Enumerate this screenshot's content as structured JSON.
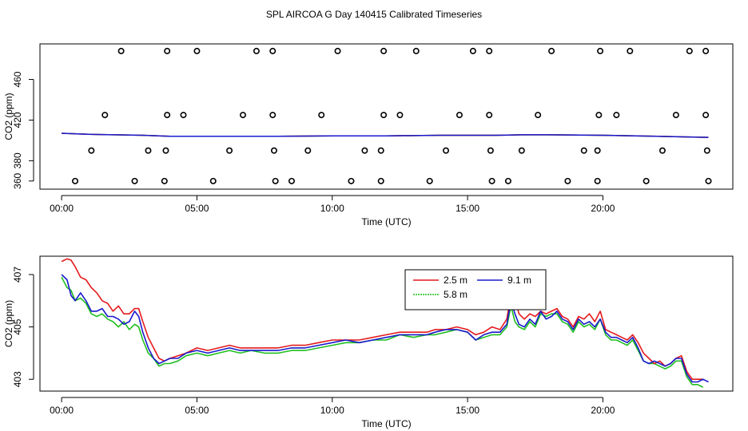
{
  "title": "SPL AIRCOA G  Day 140415  Calibrated Timeseries",
  "colors": {
    "red": "#e41a1c",
    "green": "#1fbf1f",
    "blue": "#1a1acc",
    "axis": "#000000"
  },
  "chart_data": [
    {
      "type": "line",
      "title": "",
      "xlabel": "Time (UTC)",
      "ylabel": "CO2 (ppm)",
      "xlim": [
        -0.8,
        24.8
      ],
      "ylim": [
        352,
        495
      ],
      "x_ticks": [
        0,
        5,
        10,
        15,
        20
      ],
      "x_tick_labels": [
        "00:00",
        "05:00",
        "10:00",
        "15:00",
        "20:00"
      ],
      "y_ticks": [
        380,
        420,
        460
      ],
      "y_tick_labels": [
        "380",
        "420",
        "460"
      ],
      "y_ticks_left": [
        360,
        380,
        420,
        460
      ],
      "y_ticks_left_labels": [
        "360",
        "",
        "",
        ""
      ],
      "series": [
        {
          "name": "2.5 m",
          "color": "red",
          "x": [
            0,
            1,
            2,
            3,
            4,
            5,
            6,
            8,
            10,
            12,
            14,
            16,
            17,
            18,
            20,
            22,
            23,
            23.9
          ],
          "y": [
            407,
            406,
            405.5,
            405,
            404,
            404,
            404,
            404,
            404.5,
            404.5,
            405,
            405,
            405.5,
            405.5,
            405,
            404,
            403.5,
            403
          ]
        },
        {
          "name": "5.8 m",
          "color": "green",
          "x": [
            0,
            1,
            2,
            3,
            4,
            5,
            6,
            8,
            10,
            12,
            14,
            16,
            17,
            18,
            20,
            22,
            23,
            23.9
          ],
          "y": [
            407,
            406,
            405.5,
            405,
            404,
            404,
            404,
            404,
            404.5,
            404.5,
            405,
            405,
            405.5,
            405.5,
            405,
            404,
            403.5,
            403
          ]
        },
        {
          "name": "9.1 m",
          "color": "blue",
          "x": [
            0,
            1,
            2,
            3,
            4,
            5,
            6,
            8,
            10,
            12,
            14,
            16,
            17,
            18,
            20,
            22,
            23,
            23.9
          ],
          "y": [
            407,
            406,
            405.5,
            405,
            404,
            404,
            404,
            404,
            404.5,
            404.5,
            405,
            405,
            405.5,
            405.5,
            405,
            404,
            403.5,
            403
          ]
        }
      ],
      "calibration_points": {
        "marker": "open-circle",
        "x": [
          0.5,
          1.1,
          1.6,
          2.2,
          2.7,
          3.2,
          3.8,
          3.85,
          3.9,
          3.9,
          4.5,
          5.0,
          5.6,
          6.2,
          6.7,
          7.2,
          7.8,
          7.8,
          7.85,
          7.9,
          8.5,
          9.1,
          9.6,
          10.2,
          10.7,
          11.2,
          11.8,
          11.8,
          11.9,
          11.9,
          12.5,
          13.1,
          13.6,
          14.2,
          14.7,
          15.2,
          15.8,
          15.8,
          15.85,
          15.9,
          16.5,
          17.0,
          17.6,
          18.1,
          18.7,
          19.3,
          19.8,
          19.8,
          19.85,
          19.9,
          20.5,
          21.0,
          21.6,
          22.2,
          22.7,
          23.2,
          23.8,
          23.8,
          23.85,
          23.9
        ],
        "y": [
          360,
          390,
          425,
          488,
          360,
          390,
          360,
          390,
          425,
          488,
          425,
          488,
          360,
          390,
          425,
          488,
          488,
          425,
          390,
          360,
          360,
          390,
          425,
          488,
          360,
          390,
          360,
          390,
          425,
          488,
          425,
          488,
          360,
          390,
          425,
          488,
          488,
          425,
          390,
          360,
          360,
          390,
          425,
          488,
          360,
          390,
          360,
          390,
          425,
          488,
          425,
          488,
          360,
          390,
          425,
          488,
          488,
          425,
          390,
          360
        ]
      }
    },
    {
      "type": "line",
      "title": "",
      "xlabel": "Time (UTC)",
      "ylabel": "CO2 (ppm)",
      "xlim": [
        -0.8,
        24.8
      ],
      "ylim": [
        402.55,
        407.7
      ],
      "x_ticks": [
        0,
        5,
        10,
        15,
        20
      ],
      "x_tick_labels": [
        "00:00",
        "05:00",
        "10:00",
        "15:00",
        "20:00"
      ],
      "y_ticks": [
        403,
        405,
        407
      ],
      "y_tick_labels": [
        "403",
        "405",
        "407"
      ],
      "legend": {
        "position": "top-center",
        "ncol": 2
      },
      "series": [
        {
          "name": "2.5 m",
          "color": "red",
          "x": [
            0.0,
            0.2,
            0.35,
            0.5,
            0.7,
            0.9,
            1.1,
            1.3,
            1.5,
            1.7,
            1.9,
            2.1,
            2.3,
            2.5,
            2.7,
            2.85,
            3.0,
            3.2,
            3.4,
            3.6,
            3.8,
            4.0,
            4.3,
            4.6,
            5.0,
            5.4,
            5.8,
            6.2,
            6.6,
            7.0,
            7.5,
            8.0,
            8.5,
            9.0,
            9.5,
            10.0,
            10.5,
            11.0,
            11.5,
            12.0,
            12.5,
            13.0,
            13.5,
            13.8,
            14.2,
            14.6,
            15.0,
            15.3,
            15.6,
            15.9,
            16.2,
            16.45,
            16.6,
            16.75,
            16.9,
            17.1,
            17.3,
            17.5,
            17.7,
            17.9,
            18.1,
            18.3,
            18.5,
            18.7,
            18.9,
            19.1,
            19.3,
            19.5,
            19.7,
            19.9,
            20.1,
            20.3,
            20.5,
            20.7,
            20.9,
            21.1,
            21.3,
            21.5,
            21.7,
            21.9,
            22.1,
            22.3,
            22.5,
            22.7,
            22.9,
            23.1,
            23.3,
            23.5,
            23.7
          ],
          "y": [
            407.5,
            407.6,
            407.55,
            407.3,
            406.9,
            406.8,
            406.5,
            406.3,
            406.0,
            405.9,
            405.6,
            405.8,
            405.5,
            405.5,
            405.7,
            405.7,
            405.2,
            404.6,
            404.2,
            403.8,
            403.7,
            403.8,
            403.9,
            404.0,
            404.2,
            404.1,
            404.2,
            404.3,
            404.2,
            404.2,
            404.2,
            404.2,
            404.3,
            404.3,
            404.4,
            404.5,
            404.5,
            404.5,
            404.6,
            404.7,
            404.8,
            404.8,
            404.8,
            404.9,
            404.9,
            405.0,
            404.9,
            404.7,
            404.8,
            405.0,
            404.9,
            405.3,
            406.2,
            406.1,
            405.5,
            405.3,
            405.5,
            405.4,
            405.6,
            405.5,
            405.6,
            405.7,
            405.4,
            405.3,
            405.0,
            405.4,
            405.3,
            405.5,
            405.2,
            405.6,
            404.9,
            404.8,
            404.7,
            404.6,
            404.5,
            404.7,
            404.4,
            404.0,
            403.8,
            403.6,
            403.7,
            403.5,
            403.6,
            403.8,
            403.9,
            403.3,
            403.0,
            403.0,
            403.0
          ]
        },
        {
          "name": "5.8 m",
          "color": "green",
          "x": [
            0.0,
            0.2,
            0.35,
            0.5,
            0.7,
            0.9,
            1.1,
            1.3,
            1.5,
            1.7,
            1.9,
            2.1,
            2.3,
            2.5,
            2.7,
            2.85,
            3.0,
            3.2,
            3.4,
            3.6,
            3.8,
            4.0,
            4.3,
            4.6,
            5.0,
            5.4,
            5.8,
            6.2,
            6.6,
            7.0,
            7.5,
            8.0,
            8.5,
            9.0,
            9.5,
            10.0,
            10.5,
            11.0,
            11.5,
            12.0,
            12.5,
            13.0,
            13.5,
            13.8,
            14.2,
            14.6,
            15.0,
            15.3,
            15.6,
            15.9,
            16.2,
            16.45,
            16.6,
            16.75,
            16.9,
            17.1,
            17.3,
            17.5,
            17.7,
            17.9,
            18.1,
            18.3,
            18.5,
            18.7,
            18.9,
            19.1,
            19.3,
            19.5,
            19.7,
            19.9,
            20.1,
            20.3,
            20.5,
            20.7,
            20.9,
            21.1,
            21.3,
            21.5,
            21.7,
            21.9,
            22.1,
            22.3,
            22.5,
            22.7,
            22.9,
            23.1,
            23.3,
            23.5,
            23.7
          ],
          "y": [
            406.9,
            406.5,
            406.4,
            406.0,
            406.1,
            405.9,
            405.5,
            405.4,
            405.5,
            405.3,
            405.2,
            405.0,
            405.2,
            404.9,
            405.1,
            405.0,
            404.5,
            404.0,
            403.8,
            403.5,
            403.6,
            403.6,
            403.7,
            403.9,
            404.0,
            403.9,
            404.0,
            404.1,
            404.0,
            404.1,
            404.0,
            404.0,
            404.1,
            404.1,
            404.2,
            404.3,
            404.4,
            404.4,
            404.5,
            404.5,
            404.7,
            404.6,
            404.7,
            404.7,
            404.8,
            404.9,
            404.8,
            404.5,
            404.6,
            404.7,
            404.7,
            405.0,
            405.8,
            405.2,
            405.0,
            404.9,
            405.2,
            405.0,
            405.5,
            405.4,
            405.5,
            405.5,
            405.2,
            405.1,
            404.8,
            405.2,
            405.0,
            405.1,
            404.9,
            405.3,
            404.7,
            404.5,
            404.5,
            404.4,
            404.3,
            404.5,
            404.1,
            403.7,
            403.6,
            403.6,
            403.5,
            403.4,
            403.5,
            403.7,
            403.7,
            403.1,
            402.8,
            402.8,
            402.7
          ]
        },
        {
          "name": "9.1 m",
          "color": "blue",
          "x": [
            0.0,
            0.2,
            0.35,
            0.5,
            0.7,
            0.9,
            1.1,
            1.3,
            1.5,
            1.7,
            1.9,
            2.1,
            2.3,
            2.5,
            2.7,
            2.85,
            3.0,
            3.2,
            3.4,
            3.6,
            3.8,
            4.0,
            4.3,
            4.6,
            5.0,
            5.4,
            5.8,
            6.2,
            6.6,
            7.0,
            7.5,
            8.0,
            8.5,
            9.0,
            9.5,
            10.0,
            10.5,
            11.0,
            11.5,
            12.0,
            12.5,
            13.0,
            13.5,
            13.8,
            14.2,
            14.6,
            15.0,
            15.3,
            15.6,
            15.9,
            16.2,
            16.45,
            16.6,
            16.75,
            16.9,
            17.1,
            17.3,
            17.5,
            17.7,
            17.9,
            18.1,
            18.3,
            18.5,
            18.7,
            18.9,
            19.1,
            19.3,
            19.5,
            19.7,
            19.9,
            20.1,
            20.3,
            20.5,
            20.7,
            20.9,
            21.1,
            21.3,
            21.5,
            21.7,
            21.9,
            22.1,
            22.3,
            22.5,
            22.7,
            22.9,
            23.1,
            23.3,
            23.5,
            23.7,
            23.9
          ],
          "y": [
            407.0,
            406.8,
            406.2,
            406.0,
            406.3,
            406.0,
            405.6,
            405.6,
            405.7,
            405.4,
            405.4,
            405.3,
            405.1,
            405.2,
            405.6,
            405.4,
            404.8,
            404.2,
            403.8,
            403.6,
            403.7,
            403.8,
            403.8,
            404.0,
            404.1,
            404.0,
            404.1,
            404.2,
            404.1,
            404.1,
            404.1,
            404.1,
            404.2,
            404.2,
            404.3,
            404.4,
            404.5,
            404.4,
            404.5,
            404.6,
            404.7,
            404.7,
            404.7,
            404.8,
            404.9,
            404.9,
            404.8,
            404.5,
            404.7,
            404.8,
            404.8,
            405.1,
            406.0,
            405.5,
            405.1,
            405.0,
            405.3,
            405.1,
            405.6,
            405.3,
            405.4,
            405.6,
            405.3,
            405.2,
            404.9,
            405.3,
            405.1,
            405.2,
            405.0,
            405.3,
            404.8,
            404.6,
            404.6,
            404.5,
            404.4,
            404.6,
            404.2,
            403.7,
            403.6,
            403.7,
            403.6,
            403.5,
            403.6,
            403.8,
            403.8,
            403.2,
            402.9,
            402.9,
            403.0,
            402.9
          ]
        }
      ]
    }
  ]
}
